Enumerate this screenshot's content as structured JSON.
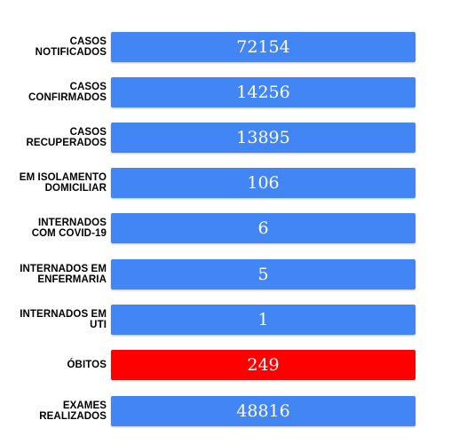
{
  "colors": {
    "default_bar": "#4285f4",
    "alert_bar": "#ff0000",
    "label_text": "#000000",
    "value_text": "#ffffff"
  },
  "stats": [
    {
      "label": "CASOS\nNOTIFICADOS",
      "value": "72154",
      "color": "#4285f4"
    },
    {
      "label": "CASOS\nCONFIRMADOS",
      "value": "14256",
      "color": "#4285f4"
    },
    {
      "label": "CASOS\nRECUPERADOS",
      "value": "13895",
      "color": "#4285f4"
    },
    {
      "label": "EM ISOLAMENTO\nDOMICILIAR",
      "value": "106",
      "color": "#4285f4"
    },
    {
      "label": "INTERNADOS\nCOM COVID-19",
      "value": "6",
      "color": "#4285f4"
    },
    {
      "label": "INTERNADOS EM\nENFERMARIA",
      "value": "5",
      "color": "#4285f4"
    },
    {
      "label": "INTERNADOS EM\nUTI",
      "value": "1",
      "color": "#4285f4"
    },
    {
      "label": "ÓBITOS",
      "value": "249",
      "color": "#ff0000"
    },
    {
      "label": "EXAMES\nREALIZADOS",
      "value": "48816",
      "color": "#4285f4"
    }
  ]
}
